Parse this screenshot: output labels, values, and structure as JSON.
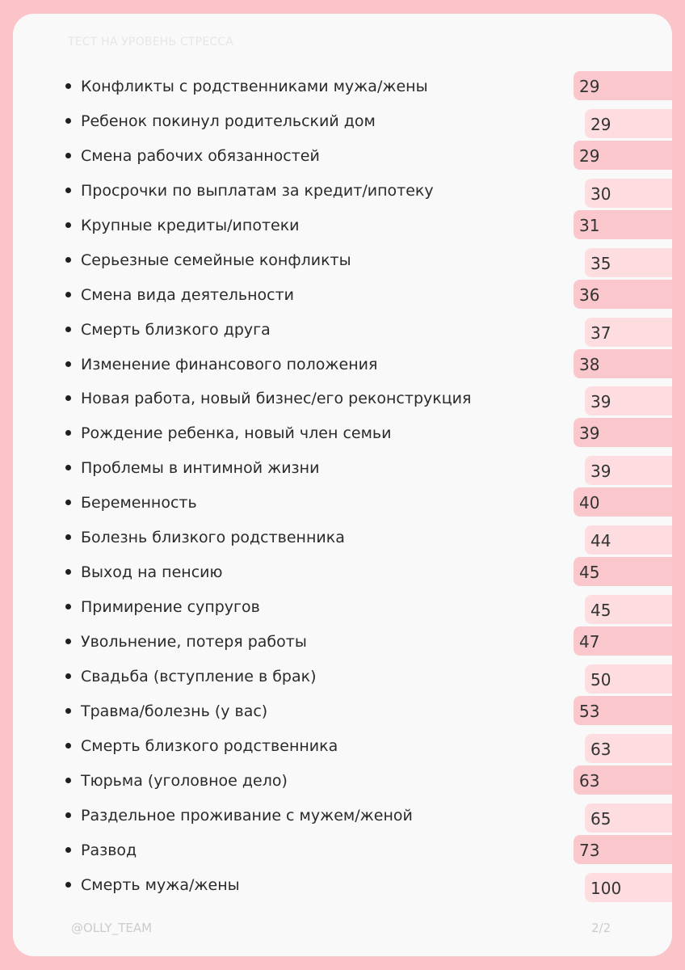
{
  "header": {
    "title": "ТЕСТ НА УРОВЕНЬ СТРЕССА"
  },
  "items": [
    {
      "label": "Конфликты с родственниками мужа/жены",
      "score": "29"
    },
    {
      "label": "Ребенок покинул родительский дом",
      "score": "29"
    },
    {
      "label": "Смена рабочих обязанностей",
      "score": "29"
    },
    {
      "label": "Просрочки по выплатам за кредит/ипотеку",
      "score": "30"
    },
    {
      "label": "Крупные кредиты/ипотеки",
      "score": "31"
    },
    {
      "label": "Серьезные семейные конфликты",
      "score": "35"
    },
    {
      "label": "Смена вида деятельности",
      "score": "36"
    },
    {
      "label": "Смерть близкого друга",
      "score": "37"
    },
    {
      "label": "Изменение финансового положения",
      "score": "38"
    },
    {
      "label": "Новая работа, новый бизнес/его реконструкция",
      "score": "39"
    },
    {
      "label": "Рождение ребенка, новый член семьи",
      "score": "39"
    },
    {
      "label": "Проблемы в интимной жизни",
      "score": "39"
    },
    {
      "label": "Беременность",
      "score": "40"
    },
    {
      "label": "Болезнь близкого родственника",
      "score": "44"
    },
    {
      "label": "Выход на пенсию",
      "score": "45"
    },
    {
      "label": "Примирение супругов",
      "score": "45"
    },
    {
      "label": "Увольнение, потеря работы",
      "score": "47"
    },
    {
      "label": "Свадьба (вступление в брак)",
      "score": "50"
    },
    {
      "label": "Травма/болезнь (у вас)",
      "score": "53"
    },
    {
      "label": "Смерть близкого родственника",
      "score": "63"
    },
    {
      "label": "Тюрьма (уголовное дело)",
      "score": "63"
    },
    {
      "label": "Раздельное проживание с мужем/женой",
      "score": "65"
    },
    {
      "label": "Развод",
      "score": "73"
    },
    {
      "label": "Смерть мужа/жены",
      "score": "100"
    }
  ],
  "footer": {
    "handle": "@OLLY_TEAM",
    "page": "2/2"
  },
  "colors": {
    "background": "#fbc4c8",
    "card": "#f9f9f9",
    "tab_dark": "#f9c7cc",
    "tab_light": "#fddde0"
  }
}
